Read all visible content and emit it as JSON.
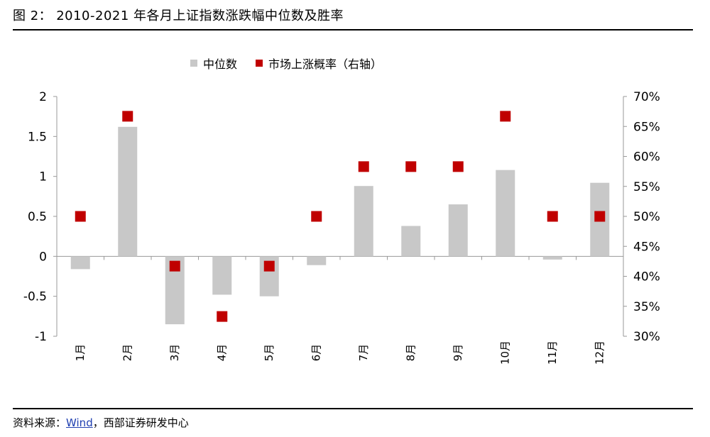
{
  "figure": {
    "title_prefix": "图 2：",
    "title_text": "2010-2021 年各月上证指数涨跌幅中位数及胜率",
    "source_prefix": "资料来源：",
    "source_link": "Wind",
    "source_suffix": "，西部证券研发中心"
  },
  "chart_data": {
    "type": "bar",
    "categories": [
      "1月",
      "2月",
      "3月",
      "4月",
      "5月",
      "6月",
      "7月",
      "8月",
      "9月",
      "10月",
      "11月",
      "12月"
    ],
    "series": [
      {
        "name": "中位数",
        "kind": "bar",
        "axis": "left",
        "color": "#c8c8c8",
        "values": [
          -0.16,
          1.62,
          -0.85,
          -0.48,
          -0.5,
          -0.11,
          0.88,
          0.38,
          0.65,
          1.08,
          -0.04,
          0.92
        ]
      },
      {
        "name": "市场上涨概率（右轴）",
        "kind": "marker",
        "axis": "right",
        "color": "#c00000",
        "values": [
          50.0,
          66.7,
          41.7,
          33.3,
          41.7,
          50.0,
          58.3,
          58.3,
          58.3,
          66.7,
          50.0,
          50.0
        ]
      }
    ],
    "y_left": {
      "lim": [
        -1,
        2
      ],
      "ticks": [
        2,
        1.5,
        1,
        0.5,
        0,
        -0.5,
        -1
      ],
      "tick_labels": [
        "2",
        "1.5",
        "1",
        "0.5",
        "0",
        "-0.5",
        "-1"
      ]
    },
    "y_right": {
      "lim": [
        30,
        70
      ],
      "ticks": [
        70,
        65,
        60,
        55,
        50,
        45,
        40,
        35,
        30
      ],
      "tick_labels": [
        "70%",
        "65%",
        "60%",
        "55%",
        "50%",
        "45%",
        "40%",
        "35%",
        "30%"
      ]
    },
    "legend_position": "top-center",
    "grid": false
  }
}
